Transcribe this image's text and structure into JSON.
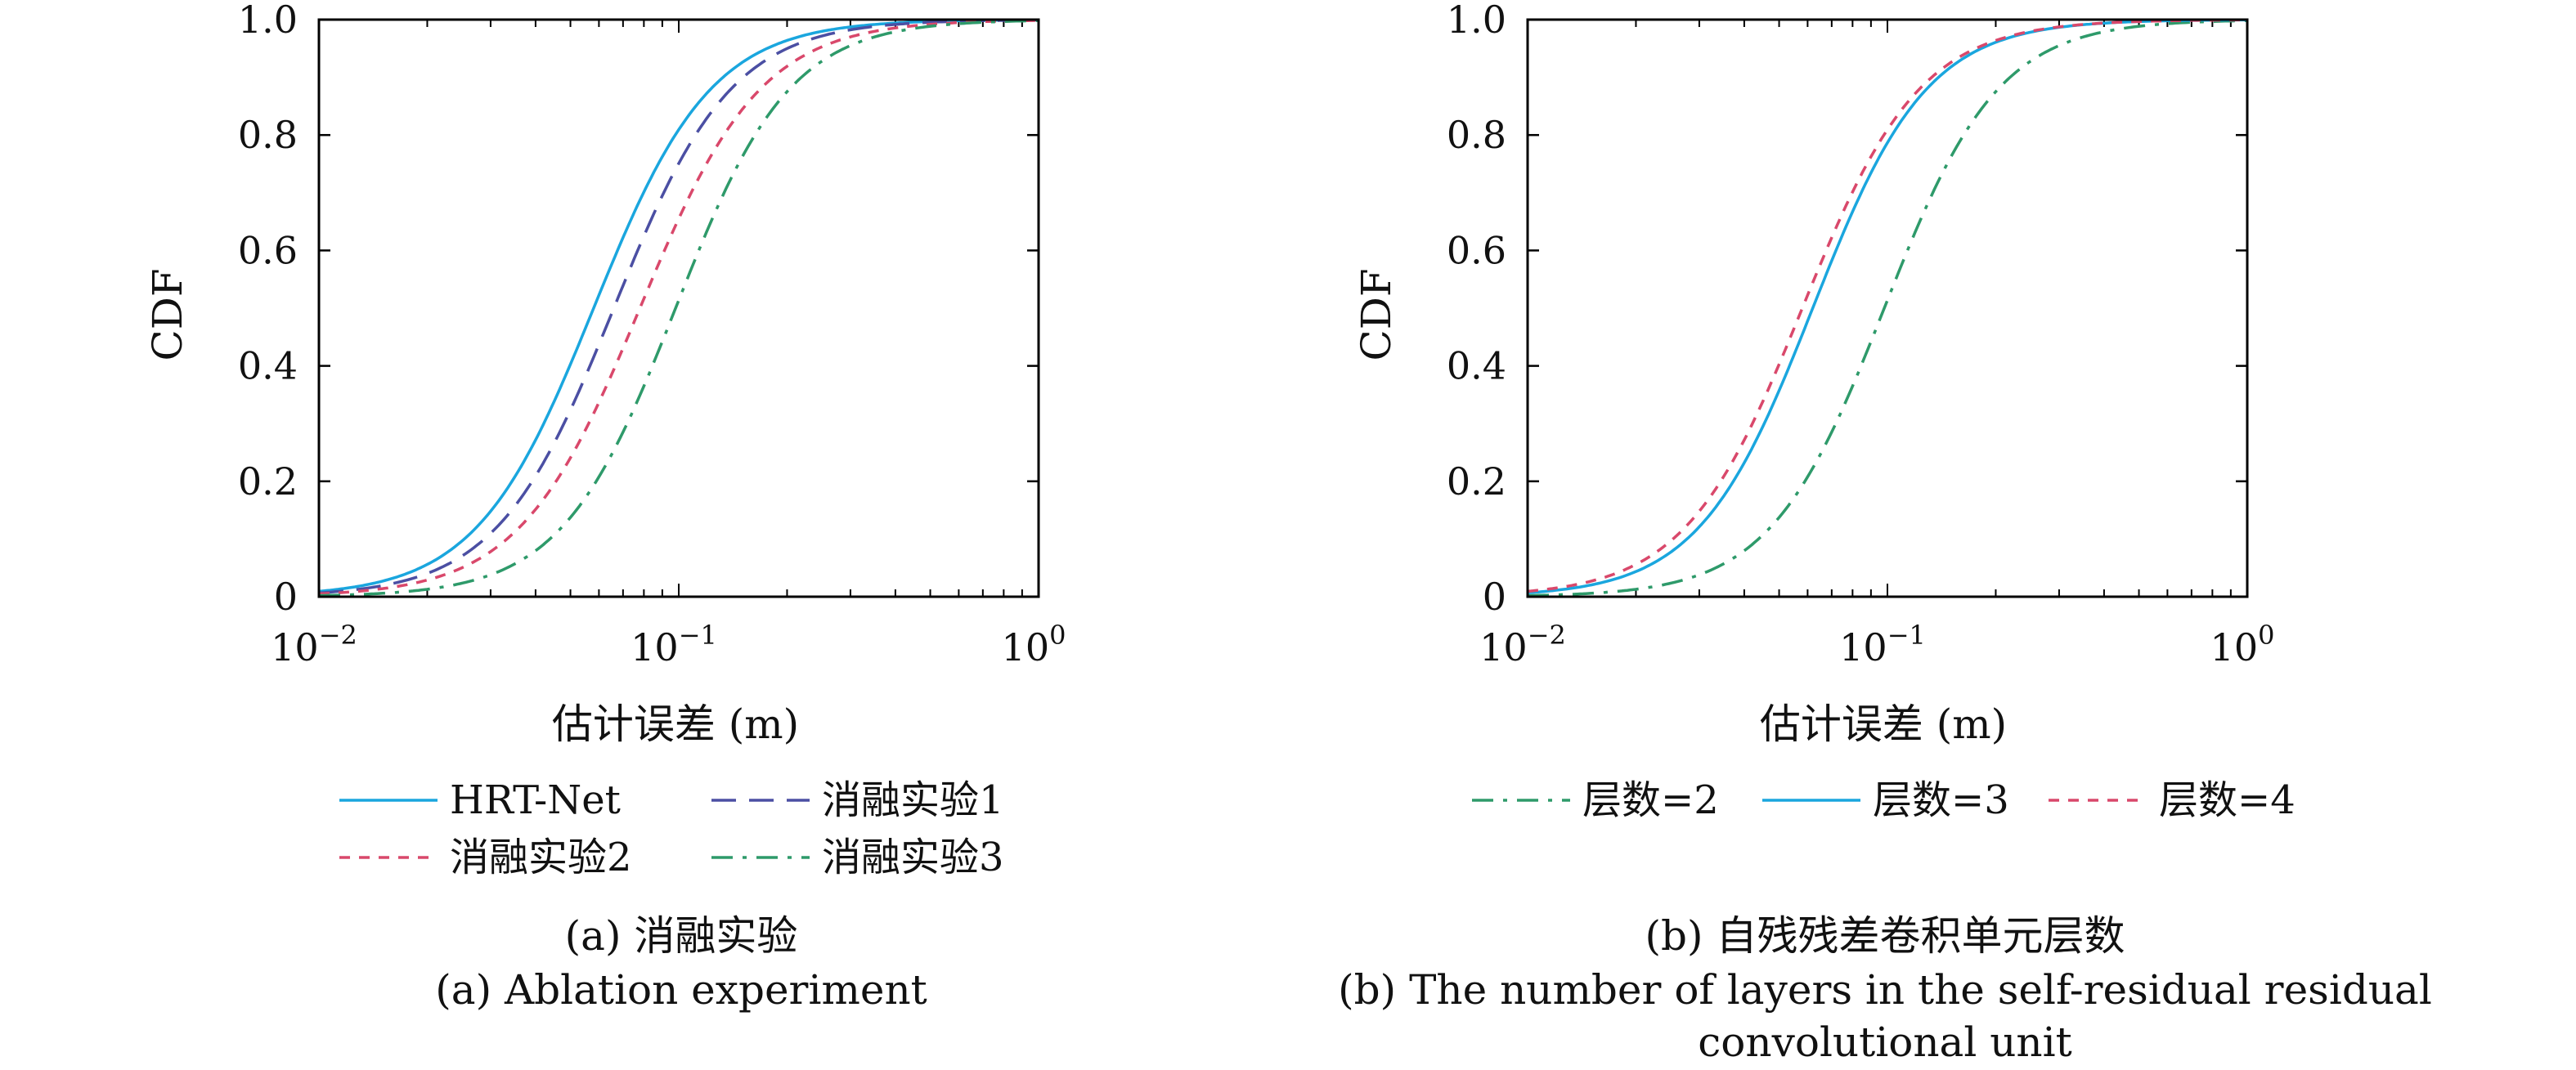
{
  "chart_data": [
    {
      "type": "line",
      "panel": "a",
      "xscale": "log",
      "xlim": [
        0.01,
        1
      ],
      "ylim": [
        0,
        1
      ],
      "xlabel": "估计误差 (m)",
      "ylabel": "CDF",
      "xticks": [
        {
          "base": "10",
          "exp": "−2"
        },
        {
          "base": "10",
          "exp": "−1"
        },
        {
          "base": "10",
          "exp": "0"
        }
      ],
      "yticks": [
        "0",
        "0.2",
        "0.4",
        "0.6",
        "0.8",
        "1.0"
      ],
      "ytick_values": [
        0,
        0.2,
        0.4,
        0.6,
        0.8,
        1.0
      ],
      "legend_columns": 2,
      "caption_cn": "(a) 消融实验",
      "caption_en": [
        "(a) Ablation experiment"
      ],
      "series": [
        {
          "name": "HRT-Net",
          "color": "#1AA6DE",
          "style": "solid",
          "median": 0.058,
          "width": 0.72
        },
        {
          "name": "消融实验1",
          "color": "#4B4FA3",
          "style": "dashed",
          "median": 0.066,
          "width": 0.72
        },
        {
          "name": "消融实验2",
          "color": "#D9486B",
          "style": "dotted",
          "median": 0.078,
          "width": 0.74
        },
        {
          "name": "消融实验3",
          "color": "#2E9A6A",
          "style": "dashdot",
          "median": 0.098,
          "width": 0.7
        }
      ]
    },
    {
      "type": "line",
      "panel": "b",
      "xscale": "log",
      "xlim": [
        0.01,
        1
      ],
      "ylim": [
        0,
        1
      ],
      "xlabel": "估计误差 (m)",
      "ylabel": "CDF",
      "xticks": [
        {
          "base": "10",
          "exp": "−2"
        },
        {
          "base": "10",
          "exp": "−1"
        },
        {
          "base": "10",
          "exp": "0"
        }
      ],
      "yticks": [
        "0",
        "0.2",
        "0.4",
        "0.6",
        "0.8",
        "1.0"
      ],
      "ytick_values": [
        0,
        0.2,
        0.4,
        0.6,
        0.8,
        1.0
      ],
      "legend_columns": 3,
      "caption_cn": "(b) 自残残差卷积单元层数",
      "caption_en": [
        "(b) The number of layers in the self-residual residual",
        "convolutional unit"
      ],
      "series": [
        {
          "name": "层数=2",
          "color": "#2E9A6A",
          "style": "dashdot",
          "median": 0.098,
          "width": 0.7
        },
        {
          "name": "层数=3",
          "color": "#1AA6DE",
          "style": "solid",
          "median": 0.062,
          "width": 0.7
        },
        {
          "name": "层数=4",
          "color": "#D9486B",
          "style": "dotted",
          "median": 0.058,
          "width": 0.72
        }
      ]
    }
  ]
}
